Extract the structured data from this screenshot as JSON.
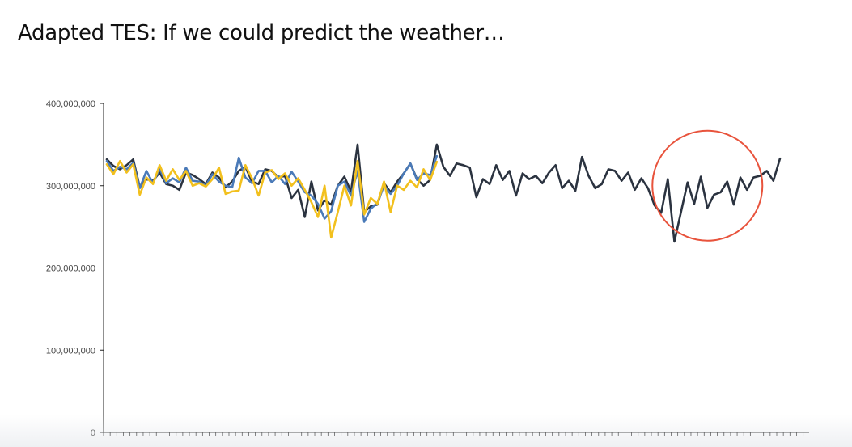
{
  "slide": {
    "title": "Adapted TES: If we could predict the weather…"
  },
  "chart_data": {
    "type": "line",
    "title": "",
    "xlabel": "",
    "ylabel": "",
    "ylim": [
      0,
      400000000
    ],
    "y_ticks": [
      {
        "value": 0,
        "label": "0"
      },
      {
        "value": 100000000,
        "label": "100,000,000"
      },
      {
        "value": 200000000,
        "label": "200,000,000"
      },
      {
        "value": 300000000,
        "label": "300,000,000"
      },
      {
        "value": 400000000,
        "label": "400,000,000"
      }
    ],
    "x_count": 103,
    "grid": false,
    "legend": "none",
    "series": [
      {
        "color": "#2b3340",
        "start_index": 0,
        "values": [
          332000000,
          324000000,
          320000000,
          325000000,
          332000000,
          298000000,
          308000000,
          306000000,
          316000000,
          302000000,
          300000000,
          295000000,
          316000000,
          313000000,
          308000000,
          302000000,
          316000000,
          310000000,
          298000000,
          305000000,
          318000000,
          323000000,
          305000000,
          302000000,
          320000000,
          318000000,
          310000000,
          312000000,
          285000000,
          295000000,
          262000000,
          305000000,
          270000000,
          282000000,
          277000000,
          300000000,
          311000000,
          293000000,
          350000000,
          268000000,
          275000000,
          277000000,
          303000000,
          292000000,
          305000000,
          315000000,
          327000000,
          308000000,
          300000000,
          307000000,
          350000000,
          323000000,
          312000000,
          327000000,
          325000000,
          322000000,
          286000000,
          308000000,
          302000000,
          325000000,
          307000000,
          318000000,
          288000000,
          315000000,
          308000000,
          312000000,
          303000000,
          316000000,
          325000000,
          297000000,
          306000000,
          294000000,
          335000000,
          312000000,
          297000000,
          302000000,
          320000000,
          318000000,
          306000000,
          316000000,
          295000000,
          309000000,
          297000000,
          276000000,
          267000000,
          308000000,
          232000000,
          268000000,
          304000000,
          278000000,
          311000000,
          273000000,
          289000000,
          292000000,
          305000000,
          277000000,
          310000000,
          295000000,
          310000000,
          312000000,
          318000000,
          306000000,
          333000000
        ]
      },
      {
        "color": "#4a7ab8",
        "start_index": 0,
        "values": [
          330000000,
          318000000,
          323000000,
          320000000,
          328000000,
          297000000,
          318000000,
          303000000,
          321000000,
          303000000,
          309000000,
          304000000,
          322000000,
          306000000,
          305000000,
          300000000,
          314000000,
          305000000,
          300000000,
          298000000,
          334000000,
          310000000,
          303000000,
          318000000,
          318000000,
          304000000,
          312000000,
          302000000,
          317000000,
          305000000,
          292000000,
          288000000,
          278000000,
          260000000,
          269000000,
          300000000,
          305000000,
          288000000,
          318000000,
          256000000,
          272000000,
          279000000,
          300000000,
          290000000,
          300000000,
          315000000,
          327000000,
          307000000,
          315000000,
          313000000,
          336000000
        ]
      },
      {
        "color": "#f2c01e",
        "start_index": 0,
        "values": [
          326000000,
          314000000,
          330000000,
          316000000,
          326000000,
          289000000,
          310000000,
          302000000,
          325000000,
          306000000,
          320000000,
          307000000,
          318000000,
          300000000,
          303000000,
          299000000,
          308000000,
          322000000,
          290000000,
          293000000,
          294000000,
          325000000,
          309000000,
          288000000,
          316000000,
          319000000,
          308000000,
          315000000,
          300000000,
          309000000,
          295000000,
          280000000,
          262000000,
          300000000,
          237000000,
          268000000,
          300000000,
          276000000,
          330000000,
          265000000,
          285000000,
          278000000,
          305000000,
          268000000,
          300000000,
          295000000,
          306000000,
          298000000,
          320000000,
          307000000,
          329000000
        ]
      }
    ],
    "annotation": {
      "shape": "circle",
      "color": "#e8533c",
      "x_center_index": 91,
      "y_center_value": 300000000
    }
  }
}
